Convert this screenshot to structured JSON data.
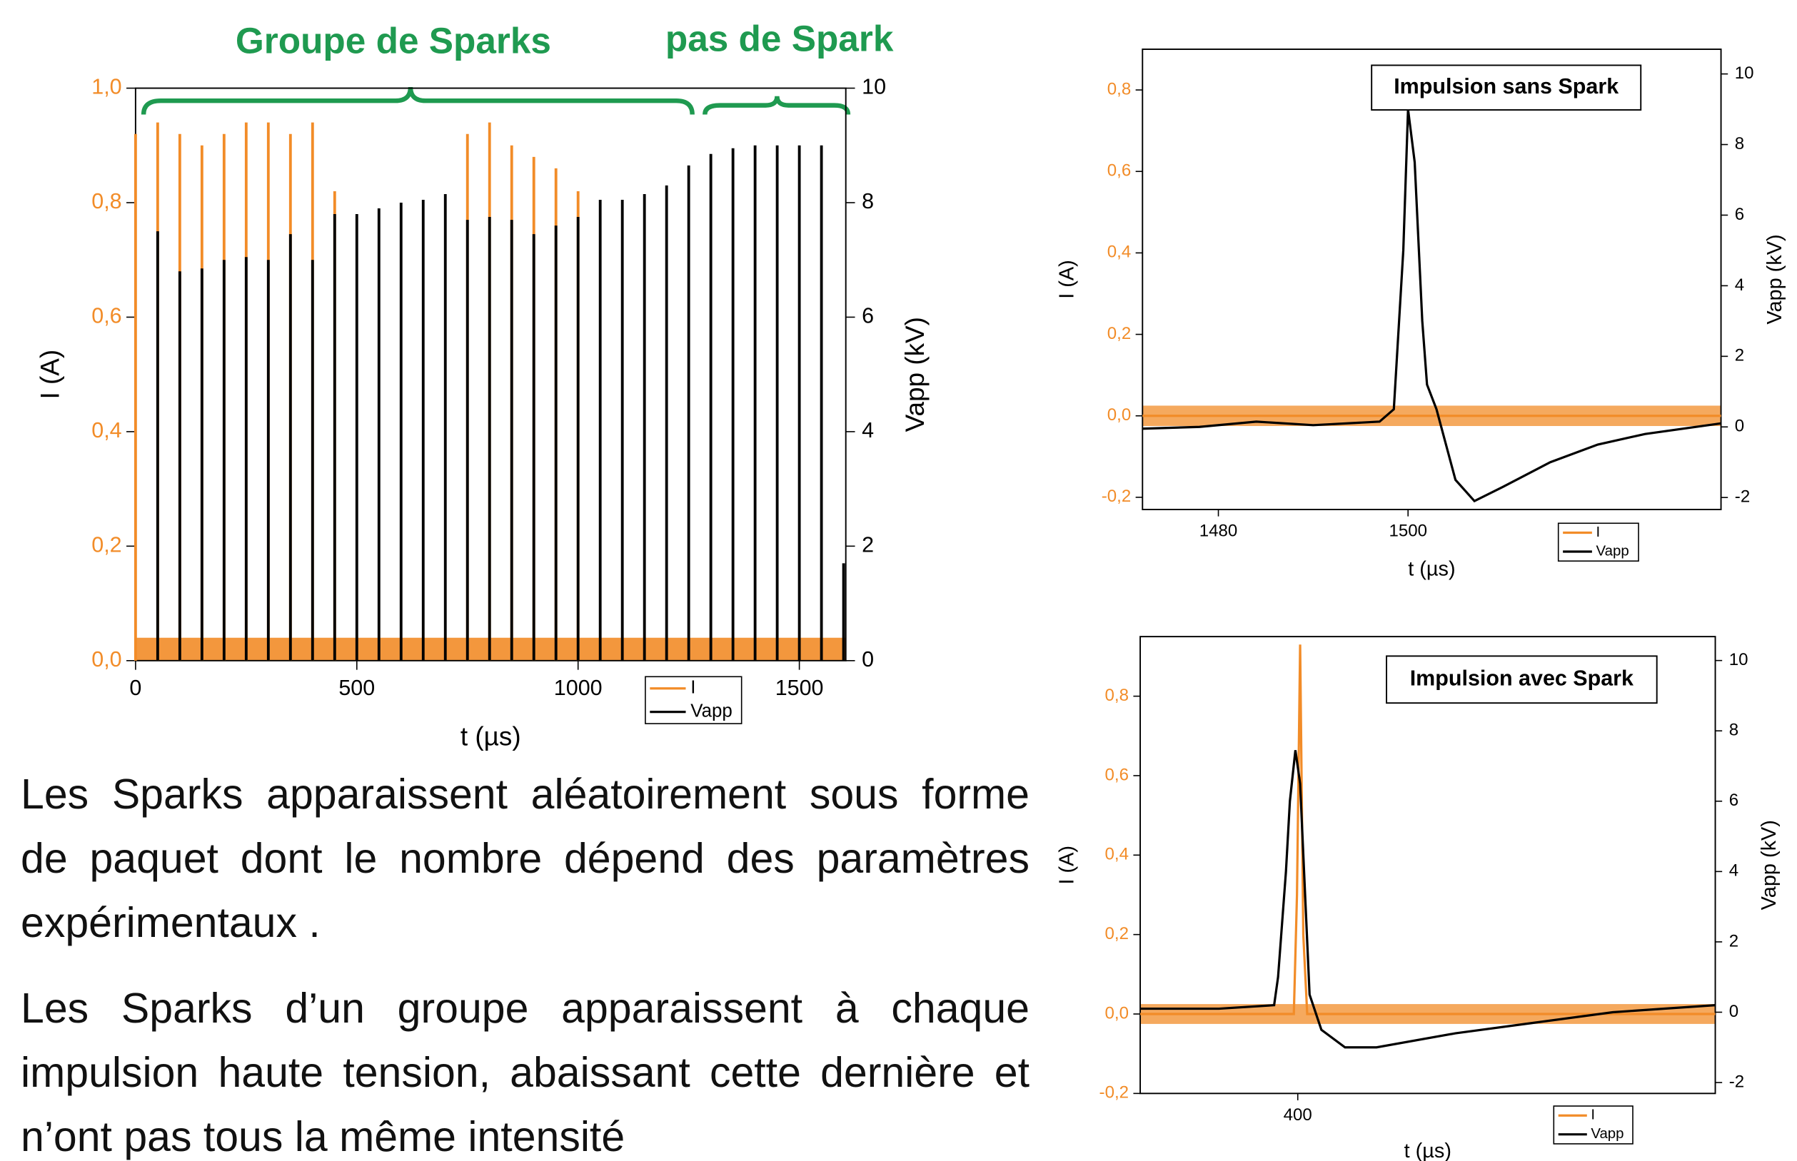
{
  "chart_data": [
    {
      "type": "spikes",
      "annotations": [
        "Groupe de Sparks",
        "pas de Spark"
      ],
      "xlabel": "t (µs)",
      "ylabel": "I (A)",
      "y2label": "Vapp (kV)",
      "xlim": [
        0,
        1605
      ],
      "ylim": [
        0,
        1
      ],
      "y2lim": [
        0,
        10
      ],
      "xticks": [
        0,
        500,
        1000,
        1500
      ],
      "yticks": [
        {
          "value": 0,
          "label": "0,0"
        },
        {
          "value": 0.2,
          "label": "0,2"
        },
        {
          "value": 0.4,
          "label": "0,4"
        },
        {
          "value": 0.6,
          "label": "0,6"
        },
        {
          "value": 0.8,
          "label": "0,8"
        },
        {
          "value": 1,
          "label": "1,0"
        }
      ],
      "y2ticks": [
        0,
        2,
        4,
        6,
        8,
        10
      ],
      "series": [
        {
          "name": "I",
          "color": "#f28c28",
          "axis": "y",
          "x": [
            0,
            50,
            100,
            150,
            200,
            250,
            300,
            350,
            400,
            450,
            750,
            800,
            850,
            900,
            950,
            1000
          ],
          "values": [
            0.92,
            0.94,
            0.92,
            0.9,
            0.92,
            0.94,
            0.94,
            0.92,
            0.94,
            0.82,
            0.92,
            0.94,
            0.9,
            0.88,
            0.86,
            0.82
          ]
        },
        {
          "name": "Vapp",
          "color": "#000000",
          "axis": "y2",
          "x": [
            50,
            100,
            150,
            200,
            250,
            300,
            350,
            400,
            450,
            500,
            550,
            600,
            650,
            700,
            750,
            800,
            850,
            900,
            950,
            1000,
            1050,
            1100,
            1150,
            1200,
            1250,
            1300,
            1350,
            1400,
            1450,
            1500,
            1550,
            1600
          ],
          "values": [
            7.5,
            6.8,
            6.85,
            7.0,
            7.05,
            7.0,
            7.45,
            7.0,
            7.8,
            7.8,
            7.9,
            8.0,
            8.05,
            8.15,
            7.7,
            7.75,
            7.7,
            7.45,
            7.6,
            7.75,
            8.05,
            8.05,
            8.15,
            8.3,
            8.65,
            8.85,
            8.95,
            9.0,
            9.0,
            9.0,
            9.0,
            1.7
          ]
        }
      ]
    },
    {
      "type": "line",
      "title": "Impulsion sans Spark",
      "xlabel": "t (µs)",
      "ylabel": "I (A)",
      "y2label": "Vapp (kV)",
      "xlim": [
        1472,
        1533
      ],
      "ylim": [
        -0.23,
        0.9
      ],
      "y2lim": [
        -2.34,
        10.7
      ],
      "xticks": [
        1480,
        1500
      ],
      "yticks": [
        {
          "value": -0.2,
          "label": "-0,2"
        },
        {
          "value": 0,
          "label": "0,0"
        },
        {
          "value": 0.2,
          "label": "0,2"
        },
        {
          "value": 0.4,
          "label": "0,4"
        },
        {
          "value": 0.6,
          "label": "0,6"
        },
        {
          "value": 0.8,
          "label": "0,8"
        }
      ],
      "y2ticks": [
        -2,
        0,
        2,
        4,
        6,
        8,
        10
      ],
      "series": [
        {
          "name": "I",
          "color": "#f28c28",
          "axis": "y",
          "x": [
            1472,
            1533
          ],
          "values": [
            0,
            0
          ]
        },
        {
          "name": "Vapp",
          "color": "#000000",
          "axis": "y2",
          "x": [
            1472,
            1478,
            1484,
            1490,
            1497,
            1498.5,
            1499.5,
            1500,
            1500.7,
            1501.5,
            1502,
            1503,
            1505,
            1507,
            1510,
            1515,
            1520,
            1525,
            1533
          ],
          "values": [
            -0.05,
            0.0,
            0.15,
            0.05,
            0.15,
            0.5,
            5,
            9.0,
            7.5,
            3,
            1.2,
            0.5,
            -1.5,
            -2.1,
            -1.7,
            -1.0,
            -0.5,
            -0.2,
            0.1
          ]
        }
      ]
    },
    {
      "type": "line",
      "title": "Impulsion avec Spark",
      "xlabel": "t (µs)",
      "ylabel": "I (A)",
      "y2label": "Vapp (kV)",
      "xlim": [
        380,
        453
      ],
      "ylim": [
        -0.2,
        0.95
      ],
      "y2lim": [
        -2.31,
        10.68
      ],
      "xticks": [
        400
      ],
      "yticks": [
        {
          "value": -0.2,
          "label": "-0,2"
        },
        {
          "value": 0,
          "label": "0,0"
        },
        {
          "value": 0.2,
          "label": "0,2"
        },
        {
          "value": 0.4,
          "label": "0,4"
        },
        {
          "value": 0.6,
          "label": "0,6"
        },
        {
          "value": 0.8,
          "label": "0,8"
        }
      ],
      "y2ticks": [
        -2,
        0,
        2,
        4,
        6,
        8,
        10
      ],
      "series": [
        {
          "name": "I",
          "color": "#f28c28",
          "axis": "y",
          "x": [
            380,
            399.5,
            399.9,
            400.3,
            400.7,
            401.2,
            453
          ],
          "values": [
            0,
            0,
            0.3,
            0.93,
            0.2,
            0,
            0
          ]
        },
        {
          "name": "Vapp",
          "color": "#000000",
          "axis": "y2",
          "x": [
            380,
            390,
            397,
            397.5,
            398.5,
            399,
            399.7,
            400.3,
            401,
            401.5,
            403,
            406,
            410,
            420,
            430,
            440,
            453
          ],
          "values": [
            0.1,
            0.1,
            0.2,
            1,
            4,
            6,
            7.45,
            6.5,
            3,
            0.5,
            -0.5,
            -1.0,
            -1.0,
            -0.6,
            -0.3,
            0,
            0.2
          ]
        }
      ]
    }
  ],
  "text": {
    "paragraphs": [
      "Les Sparks apparaissent aléatoirement sous forme de paquet dont le nombre dépend des paramètres expérimentaux .",
      "Les Sparks d’un groupe apparaissent à chaque impulsion haute tension, abaissant cette dernière et n’ont pas tous la même intensité"
    ]
  }
}
